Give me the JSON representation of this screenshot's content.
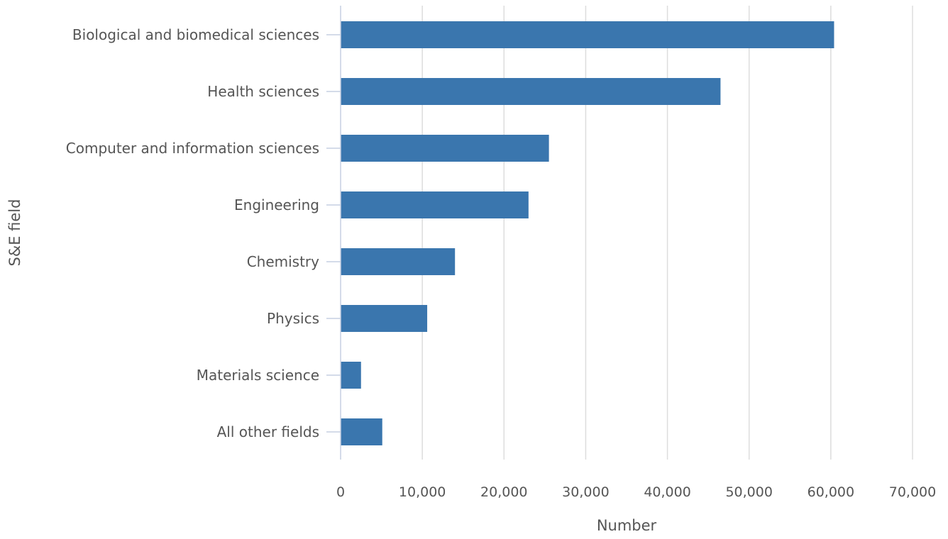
{
  "chart_data": {
    "type": "bar",
    "orientation": "horizontal",
    "categories": [
      "Biological and biomedical sciences",
      "Health sciences",
      "Computer and information sciences",
      "Engineering",
      "Chemistry",
      "Physics",
      "Materials science",
      "All other fields"
    ],
    "values": [
      60400,
      46500,
      25500,
      23000,
      14000,
      10600,
      2500,
      5100
    ],
    "xlabel": "Number",
    "ylabel": "S&E field",
    "xlim": [
      0,
      70000
    ],
    "xticks": [
      0,
      10000,
      20000,
      30000,
      40000,
      50000,
      60000,
      70000
    ],
    "xtick_labels": [
      "0",
      "10,000",
      "20,000",
      "30,000",
      "40,000",
      "50,000",
      "60,000",
      "70,000"
    ],
    "grid": "vertical",
    "legend": "none",
    "bar_color": "#3a76ae"
  }
}
